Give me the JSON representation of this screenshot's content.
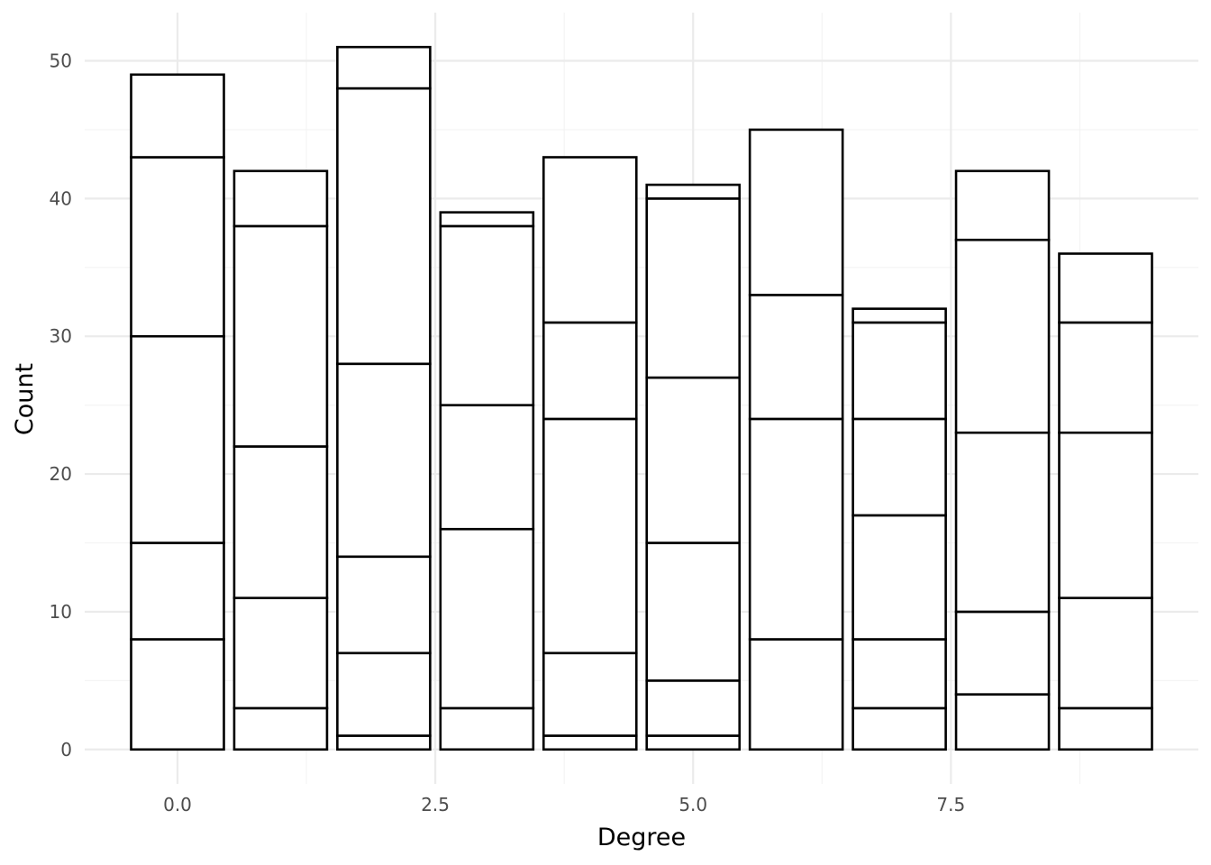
{
  "chart_data": {
    "type": "bar",
    "stacked": true,
    "xlabel": "Degree",
    "ylabel": "Count",
    "xlim": [
      -0.9,
      9.9
    ],
    "ylim": [
      -2.5,
      53.5
    ],
    "x_ticks": [
      {
        "value": 0,
        "label": "0.0"
      },
      {
        "value": 2.5,
        "label": "2.5"
      },
      {
        "value": 5,
        "label": "5.0"
      },
      {
        "value": 7.5,
        "label": "7.5"
      }
    ],
    "y_ticks": [
      {
        "value": 0,
        "label": "0"
      },
      {
        "value": 10,
        "label": "10"
      },
      {
        "value": 20,
        "label": "20"
      },
      {
        "value": 30,
        "label": "30"
      },
      {
        "value": 40,
        "label": "40"
      },
      {
        "value": 50,
        "label": "50"
      }
    ],
    "grid": true,
    "fill": "#ffffff",
    "outline": "#000000",
    "bars": [
      {
        "x": 0,
        "total": 49,
        "boundaries": [
          8,
          15,
          30,
          43
        ]
      },
      {
        "x": 1,
        "total": 42,
        "boundaries": [
          3,
          11,
          22,
          38
        ]
      },
      {
        "x": 2,
        "total": 51,
        "boundaries": [
          1,
          7,
          14,
          28,
          48
        ]
      },
      {
        "x": 3,
        "total": 39,
        "boundaries": [
          3,
          16,
          25,
          38
        ]
      },
      {
        "x": 4,
        "total": 43,
        "boundaries": [
          1,
          7,
          24,
          31
        ]
      },
      {
        "x": 5,
        "total": 41,
        "boundaries": [
          1,
          5,
          15,
          27,
          40
        ]
      },
      {
        "x": 6,
        "total": 45,
        "boundaries": [
          8,
          24,
          33
        ]
      },
      {
        "x": 7,
        "total": 32,
        "boundaries": [
          3,
          8,
          17,
          24,
          31
        ]
      },
      {
        "x": 8,
        "total": 42,
        "boundaries": [
          4,
          10,
          23,
          37
        ]
      },
      {
        "x": 9,
        "total": 36,
        "boundaries": [
          3,
          11,
          23,
          31
        ]
      }
    ]
  }
}
